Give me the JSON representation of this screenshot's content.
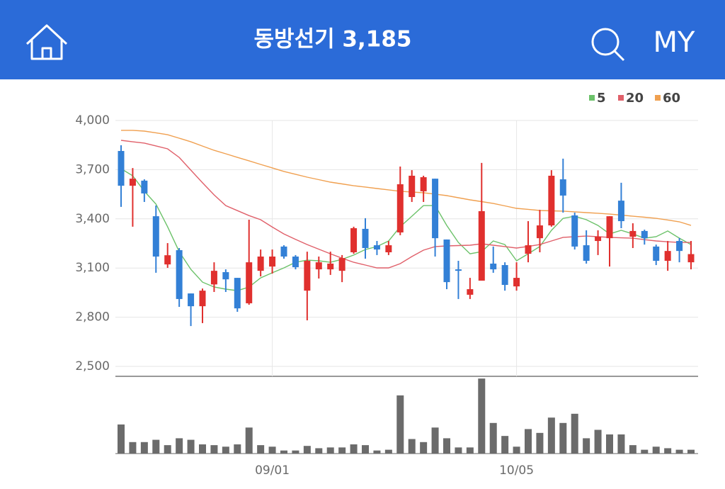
{
  "header": {
    "title": "동방선기 3,185",
    "my": "MY"
  },
  "chart_data": [
    {
      "type": "candlestick",
      "categories": [
        null,
        null,
        null,
        null,
        null,
        null,
        null,
        null,
        null,
        null,
        null,
        null,
        null,
        "09/01",
        null,
        null,
        null,
        null,
        null,
        null,
        null,
        null,
        null,
        null,
        null,
        null,
        null,
        null,
        null,
        null,
        null,
        null,
        null,
        null,
        "10/05",
        null,
        null,
        null,
        null,
        null,
        null,
        null,
        null,
        null,
        null,
        null,
        null,
        null,
        null,
        null
      ],
      "open": [
        3814,
        3602,
        3633,
        3416,
        3122,
        3209,
        2945,
        2867,
        3000,
        3075,
        3040,
        2885,
        3083,
        3109,
        3231,
        3170,
        2962,
        3092,
        3092,
        3083,
        3196,
        3339,
        3239,
        3196,
        3317,
        3533,
        3568,
        3645,
        3274,
        3092,
        2937,
        3023,
        3127,
        3118,
        2988,
        3187,
        3282,
        3360,
        3641,
        3421,
        3239,
        3265,
        3282,
        3511,
        3291,
        3326,
        3231,
        3144,
        3265,
        3135
      ],
      "high": [
        3849,
        3710,
        3641,
        3481,
        3252,
        3222,
        2945,
        2975,
        3135,
        3092,
        3040,
        3395,
        3213,
        3213,
        3239,
        3179,
        3200,
        3170,
        3200,
        3179,
        3352,
        3404,
        3265,
        3265,
        3719,
        3697,
        3663,
        3645,
        3274,
        3144,
        3040,
        3741,
        3231,
        3135,
        3135,
        3386,
        3455,
        3697,
        3767,
        3438,
        3330,
        3330,
        3416,
        3620,
        3373,
        3334,
        3243,
        3265,
        3283,
        3265
      ],
      "low": [
        3473,
        3352,
        3503,
        3071,
        3101,
        2863,
        2746,
        2764,
        2954,
        2954,
        2833,
        2876,
        3049,
        3066,
        3157,
        3092,
        2781,
        3036,
        3058,
        3014,
        3187,
        3157,
        3179,
        3179,
        3300,
        3503,
        3503,
        3170,
        2971,
        2911,
        2911,
        3023,
        3071,
        2962,
        2962,
        3135,
        3196,
        3352,
        3438,
        3213,
        3127,
        3179,
        3109,
        3343,
        3222,
        3243,
        3118,
        3083,
        3135,
        3092
      ],
      "close": [
        3602,
        3645,
        3555,
        3170,
        3178,
        2911,
        2867,
        2962,
        3083,
        3031,
        2854,
        3135,
        3170,
        3170,
        3170,
        3105,
        3144,
        3135,
        3127,
        3161,
        3343,
        3222,
        3213,
        3239,
        3611,
        3663,
        3654,
        3282,
        3014,
        3083,
        2971,
        3447,
        3092,
        2997,
        3040,
        3239,
        3360,
        3663,
        3542,
        3231,
        3144,
        3291,
        3416,
        3386,
        3326,
        3282,
        3144,
        3204,
        3204,
        3185
      ],
      "up_color": "#e0302e",
      "down_color": "#3380d6",
      "series": [
        {
          "name": "5",
          "color": "#6cc26a",
          "values": [
            3706,
            3663,
            3568,
            3490,
            3352,
            3200,
            3092,
            3014,
            2984,
            2971,
            2962,
            2984,
            3040,
            3071,
            3101,
            3135,
            3148,
            3144,
            3135,
            3153,
            3179,
            3213,
            3231,
            3265,
            3352,
            3416,
            3481,
            3481,
            3360,
            3256,
            3187,
            3200,
            3265,
            3243,
            3144,
            3187,
            3231,
            3330,
            3403,
            3416,
            3395,
            3360,
            3308,
            3330,
            3308,
            3282,
            3291,
            3326,
            3282,
            3243
          ]
        },
        {
          "name": "20",
          "color": "#e0606a",
          "values": [
            3879,
            3870,
            3862,
            3845,
            3827,
            3775,
            3697,
            3620,
            3546,
            3481,
            3450,
            3420,
            3395,
            3350,
            3308,
            3275,
            3243,
            3215,
            3187,
            3160,
            3135,
            3118,
            3101,
            3101,
            3127,
            3170,
            3209,
            3231,
            3235,
            3237,
            3239,
            3248,
            3239,
            3231,
            3222,
            3232,
            3243,
            3265,
            3287,
            3291,
            3295,
            3291,
            3287,
            3284,
            3282,
            3273,
            3265,
            3260,
            3256,
            3256
          ]
        },
        {
          "name": "60",
          "color": "#f0a050",
          "values": [
            3940,
            3940,
            3935,
            3925,
            3913,
            3892,
            3870,
            3844,
            3818,
            3797,
            3775,
            3754,
            3732,
            3711,
            3689,
            3672,
            3654,
            3639,
            3624,
            3613,
            3602,
            3594,
            3585,
            3577,
            3568,
            3564,
            3559,
            3551,
            3542,
            3529,
            3516,
            3505,
            3494,
            3479,
            3464,
            3458,
            3451,
            3449,
            3447,
            3443,
            3438,
            3434,
            3429,
            3423,
            3416,
            3410,
            3403,
            3393,
            3382,
            3360
          ]
        }
      ],
      "ylim": [
        2500,
        4000
      ],
      "yticks": [
        {
          "value": 2500,
          "label": "2,500"
        },
        {
          "value": 2800,
          "label": "2,800"
        },
        {
          "value": 3100,
          "label": "3,100"
        },
        {
          "value": 3400,
          "label": "3,400"
        },
        {
          "value": 3700,
          "label": "3,700"
        },
        {
          "value": 4000,
          "label": "4,000"
        }
      ],
      "grid": true
    },
    {
      "type": "bar",
      "color": "#6b6b6b",
      "ylim": [
        0,
        100
      ],
      "values": [
        38,
        15,
        15,
        18,
        11,
        20,
        18,
        12,
        11,
        9,
        12,
        34,
        11,
        9,
        4,
        4,
        10,
        7,
        8,
        8,
        12,
        11,
        4,
        5,
        76,
        19,
        15,
        34,
        20,
        8,
        8,
        98,
        40,
        23,
        9,
        32,
        27,
        47,
        40,
        52,
        20,
        31,
        25,
        25,
        11,
        5,
        9,
        7,
        5,
        5
      ]
    }
  ]
}
